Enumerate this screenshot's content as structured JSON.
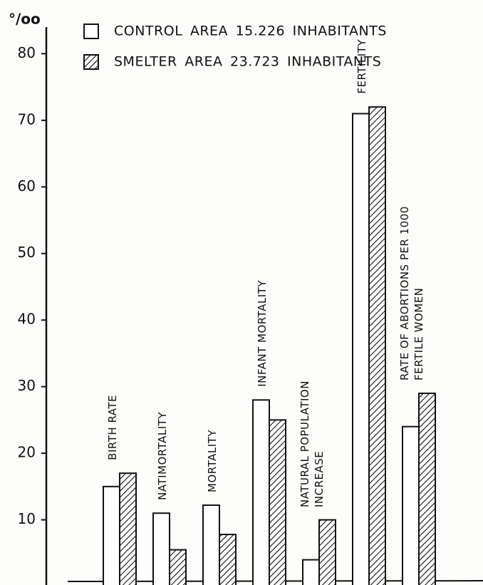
{
  "chart_data": {
    "type": "bar",
    "y_label": "°/oo",
    "categories": [
      "BIRTH RATE",
      "NATIMORTALITY",
      "MORTALITY",
      "INFANT MORTALITY",
      "NATURAL POPULATION INCREASE",
      "FERTILITY",
      "RATE OF ABORTIONS PER 1000 FERTILE WOMEN"
    ],
    "series": [
      {
        "name": "CONTROL AREA 15.226 INHABITANTS",
        "color": "#ffffff",
        "values": [
          15,
          11,
          12.2,
          28,
          4,
          71,
          24
        ]
      },
      {
        "name": "SMELTER AREA 23.723 INHABITANTS",
        "color": "#111111",
        "hatch": true,
        "values": [
          17,
          5.5,
          7.8,
          25,
          10,
          72,
          29
        ]
      }
    ],
    "ylim": [
      0,
      84
    ],
    "yticks": [
      10,
      20,
      30,
      40,
      50,
      60,
      70,
      80
    ]
  }
}
